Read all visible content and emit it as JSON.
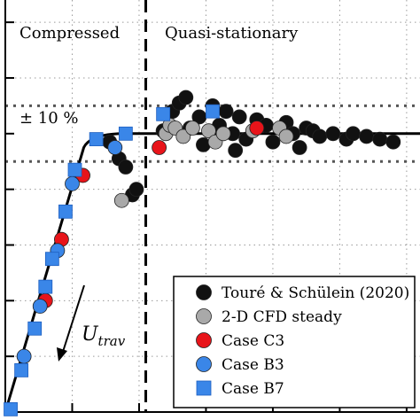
{
  "chart_data": {
    "type": "scatter",
    "title": "",
    "xlabel": "",
    "ylabel": "",
    "xlim": [
      0,
      3.1
    ],
    "ylim": [
      0,
      1.48
    ],
    "grid": true,
    "legend_position": "bottom-right",
    "region_labels": {
      "left": "Compressed",
      "right": "Quasi-stationary"
    },
    "band_label": "± 10 %",
    "annotation": {
      "main": "U",
      "sub": "trav"
    },
    "reference_line": {
      "name": "",
      "plateau": 1.0,
      "band": [
        0.9,
        1.1
      ],
      "transition_x": 1.05
    },
    "series": [
      {
        "name": "Touré & Schülein (2020)",
        "marker": "circle",
        "color": "#111111",
        "points": [
          [
            0.78,
            0.97
          ],
          [
            0.85,
            0.91
          ],
          [
            0.9,
            0.88
          ],
          [
            0.95,
            0.78
          ],
          [
            0.98,
            0.8
          ],
          [
            1.18,
            1.01
          ],
          [
            1.25,
            1.08
          ],
          [
            1.3,
            1.11
          ],
          [
            1.35,
            1.13
          ],
          [
            1.38,
            1.02
          ],
          [
            1.45,
            1.06
          ],
          [
            1.48,
            0.96
          ],
          [
            1.55,
            1.1
          ],
          [
            1.6,
            1.03
          ],
          [
            1.65,
            1.08
          ],
          [
            1.7,
            1.0
          ],
          [
            1.75,
            1.06
          ],
          [
            1.72,
            0.94
          ],
          [
            1.8,
            0.98
          ],
          [
            1.88,
            1.05
          ],
          [
            1.95,
            1.03
          ],
          [
            2.0,
            0.97
          ],
          [
            2.1,
            1.04
          ],
          [
            2.15,
            1.0
          ],
          [
            2.2,
            0.95
          ],
          [
            2.25,
            1.02
          ],
          [
            2.3,
            1.01
          ],
          [
            2.35,
            0.99
          ],
          [
            2.45,
            1.0
          ],
          [
            2.55,
            0.98
          ],
          [
            2.6,
            1.0
          ],
          [
            2.7,
            0.99
          ],
          [
            2.8,
            0.98
          ],
          [
            2.9,
            0.97
          ]
        ]
      },
      {
        "name": "2-D CFD steady",
        "marker": "circle",
        "color": "#a9a9a9",
        "points": [
          [
            0.87,
            0.76
          ],
          [
            1.2,
            1.0
          ],
          [
            1.23,
            1.03
          ],
          [
            1.27,
            1.02
          ],
          [
            1.33,
            0.99
          ],
          [
            1.4,
            1.02
          ],
          [
            1.52,
            1.01
          ],
          [
            1.57,
            0.97
          ],
          [
            1.63,
            1.0
          ],
          [
            1.85,
            1.01
          ],
          [
            2.05,
            1.02
          ],
          [
            2.1,
            0.99
          ]
        ]
      },
      {
        "name": "Case C3",
        "marker": "circle",
        "color": "#e8141a",
        "points": [
          [
            0.3,
            0.4
          ],
          [
            0.42,
            0.62
          ],
          [
            0.58,
            0.85
          ],
          [
            1.15,
            0.95
          ],
          [
            1.88,
            1.02
          ]
        ]
      },
      {
        "name": "Case B3",
        "marker": "circle",
        "color": "#3a86e8",
        "points": [
          [
            0.14,
            0.2
          ],
          [
            0.26,
            0.38
          ],
          [
            0.39,
            0.58
          ],
          [
            0.5,
            0.82
          ],
          [
            0.82,
            0.95
          ]
        ]
      },
      {
        "name": "Case B7",
        "marker": "square",
        "color": "#3a86e8",
        "points": [
          [
            0.04,
            0.01
          ],
          [
            0.12,
            0.15
          ],
          [
            0.22,
            0.3
          ],
          [
            0.3,
            0.45
          ],
          [
            0.35,
            0.55
          ],
          [
            0.45,
            0.72
          ],
          [
            0.52,
            0.87
          ],
          [
            0.68,
            0.98
          ],
          [
            0.9,
            1.0
          ],
          [
            1.18,
            1.07
          ],
          [
            1.55,
            1.08
          ]
        ]
      }
    ]
  }
}
